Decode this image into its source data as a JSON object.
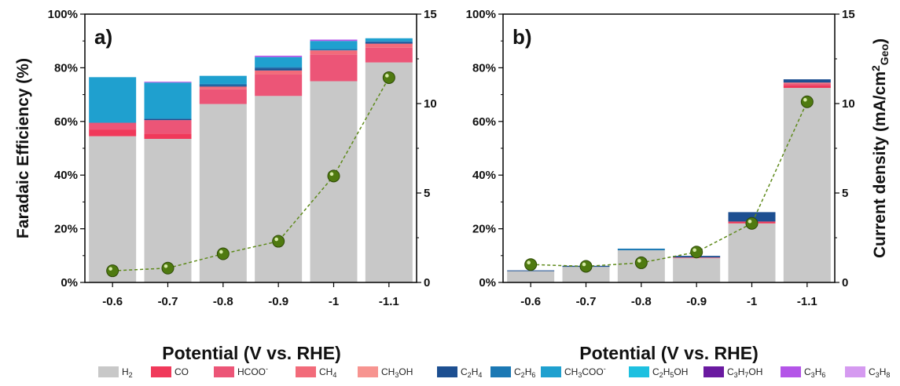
{
  "chart_data": {
    "type": "bar",
    "xlabel": "Potential (V vs. RHE)",
    "ylabel_left": "Faradaic Efficiency (%)",
    "ylabel_right": "Current density (mA/cm2Geo)",
    "categories": [
      "-0.6",
      "-0.7",
      "-0.8",
      "-0.9",
      "-1",
      "-1.1"
    ],
    "ylim_left": [
      0,
      100
    ],
    "yticks_left": [
      "0%",
      "20%",
      "40%",
      "60%",
      "80%",
      "100%"
    ],
    "ylim_right": [
      0,
      15
    ],
    "yticks_right": [
      "0",
      "5",
      "10",
      "15"
    ],
    "legend": [
      {
        "key": "H2",
        "color": "#c8c8c8"
      },
      {
        "key": "CO",
        "color": "#f0395a"
      },
      {
        "key": "HCOO-",
        "color": "#ec5577"
      },
      {
        "key": "CH4",
        "color": "#f26b7a"
      },
      {
        "key": "CH3OH",
        "color": "#f79490"
      },
      {
        "key": "C2H4",
        "color": "#1d4f91"
      },
      {
        "key": "C2H6",
        "color": "#1b78b4"
      },
      {
        "key": "CH3COO-",
        "color": "#1fa0cf"
      },
      {
        "key": "C2H5OH",
        "color": "#1ec0e0"
      },
      {
        "key": "C3H7OH",
        "color": "#6a1aa0"
      },
      {
        "key": "C3H6",
        "color": "#b455e8"
      },
      {
        "key": "C3H8",
        "color": "#d59af0"
      }
    ],
    "panels": [
      {
        "label": "a)",
        "stacks": [
          {
            "H2": 54.5,
            "CO": 2.5,
            "HCOO-": 2.5,
            "CH3COO-": 17
          },
          {
            "H2": 53.5,
            "CO": 2,
            "HCOO-": 5,
            "C2H4": 0.5,
            "CH3COO-": 13.5,
            "C3H6": 0.3
          },
          {
            "H2": 66.5,
            "HCOO-": 5.5,
            "CH4": 1,
            "C2H4": 0.5,
            "C2H6": 0.5,
            "CH3COO-": 3
          },
          {
            "H2": 69.5,
            "HCOO-": 8,
            "CH4": 1.5,
            "C2H4": 0.8,
            "C2H6": 0.5,
            "CH3COO-": 3.7,
            "C3H6": 0.5
          },
          {
            "H2": 75,
            "HCOO-": 10,
            "CH4": 1.5,
            "C2H6": 0.5,
            "CH3COO-": 3,
            "C3H6": 0.5
          },
          {
            "H2": 82,
            "HCOO-": 5.5,
            "CH4": 1.5,
            "C2H4": 0.5,
            "C2H6": 0.5,
            "CH3COO-": 1
          }
        ],
        "current_density": [
          0.65,
          0.8,
          1.6,
          2.3,
          5.95,
          11.45
        ]
      },
      {
        "label": "b)",
        "stacks": [
          {
            "H2": 4.2,
            "C2H4": 0.3
          },
          {
            "H2": 5.8,
            "C2H4": 0.4
          },
          {
            "H2": 12,
            "C2H6": 0.6
          },
          {
            "H2": 9,
            "CH4": 0.3,
            "C2H4": 0.6
          },
          {
            "H2": 22,
            "CO": 0.7,
            "C2H4": 3.5
          },
          {
            "H2": 72.5,
            "CO": 1,
            "HCOO-": 0.5,
            "CH4": 0.5,
            "C2H4": 1.2
          }
        ],
        "current_density": [
          1.0,
          0.9,
          1.1,
          1.7,
          3.3,
          10.1
        ]
      }
    ]
  }
}
